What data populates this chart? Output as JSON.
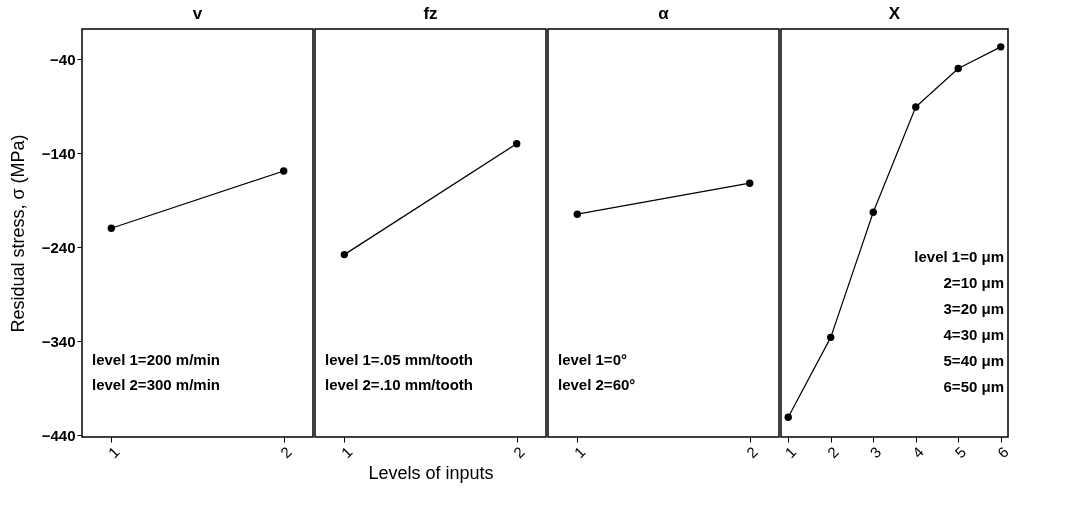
{
  "chart_data": [
    {
      "type": "line",
      "title": "v",
      "ylabel": "Residual stress, σ (MPa)",
      "categories": [
        "1",
        "2"
      ],
      "values": [
        -220,
        -159
      ],
      "color": "#000000",
      "marker": "circle",
      "ylim": [
        -442,
        -8
      ],
      "yticks": [
        -40,
        -140,
        -240,
        -340,
        -440
      ],
      "grid": false,
      "annotations": [
        "level 1=200 m/min",
        "level 2=300 m/min"
      ]
    },
    {
      "type": "line",
      "title": "fz",
      "xlabel": "Levels of inputs",
      "categories": [
        "1",
        "2"
      ],
      "values": [
        -248,
        -130
      ],
      "color": "#000000",
      "marker": "circle",
      "ylim": [
        -442,
        -8
      ],
      "yticks": [
        -40,
        -140,
        -240,
        -340,
        -440
      ],
      "grid": false,
      "tick_labels": "x",
      "annotations": [
        "level 1=.05 mm/tooth",
        "level 2=.10 mm/tooth"
      ]
    },
    {
      "type": "line",
      "title": "α",
      "categories": [
        "1",
        "2"
      ],
      "values": [
        -205,
        -172
      ],
      "color": "#000000",
      "marker": "circle",
      "ylim": [
        -442,
        -8
      ],
      "yticks": [
        -40,
        -140,
        -240,
        -340,
        -440
      ],
      "grid": false,
      "tick_labels": "x",
      "annotations": [
        "level 1=0°",
        "level 2=60°"
      ]
    },
    {
      "type": "line",
      "title": "X",
      "categories": [
        "1",
        "2",
        "3",
        "4",
        "5",
        "6"
      ],
      "values": [
        -421,
        -336,
        -203,
        -91,
        -50,
        -27
      ],
      "color": "#000000",
      "marker": "circle",
      "ylim": [
        -442,
        -8
      ],
      "yticks": [
        -40,
        -140,
        -240,
        -340,
        -440
      ],
      "grid": false,
      "tick_labels": "x",
      "annotations": [
        "level 1=0 μm",
        "2=10 μm",
        "3=20 μm",
        "4=30 μm",
        "5=40 μm",
        "6=50 μm"
      ]
    }
  ]
}
